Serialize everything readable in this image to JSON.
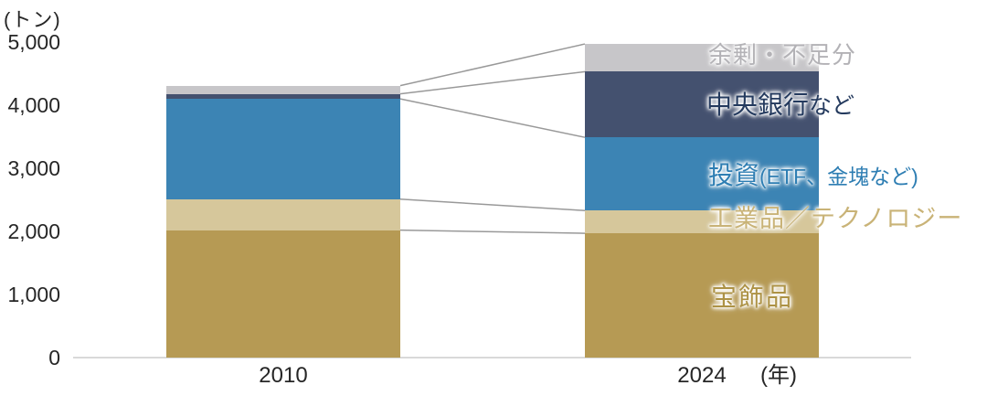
{
  "chart_data": {
    "type": "stacked-bar",
    "title": "",
    "y_unit_label": "(トン)",
    "x_unit_label": "(年)",
    "categories": [
      "2010",
      "2024"
    ],
    "series": [
      {
        "name": "宝飾品",
        "color": "#B69A54",
        "values": [
          2020,
          1970
        ]
      },
      {
        "name": "工業品／テクノロジー",
        "color": "#D6C79B",
        "values": [
          490,
          360
        ]
      },
      {
        "name": "投資(ETF、金塊など)",
        "color": "#3C84B4",
        "values": [
          1590,
          1160
        ]
      },
      {
        "name": "中央銀行など",
        "color": "#44516F",
        "values": [
          80,
          1040
        ]
      },
      {
        "name": "余剰・不足分",
        "color": "#C7C6C9",
        "values": [
          130,
          440
        ]
      }
    ],
    "totals": [
      4310,
      4970
    ],
    "ylim": [
      0,
      5000
    ],
    "y_ticks": [
      {
        "value": 0,
        "label": "0"
      },
      {
        "value": 1000,
        "label": "1,000"
      },
      {
        "value": 2000,
        "label": "2,000"
      },
      {
        "value": 3000,
        "label": "3,000"
      },
      {
        "value": 4000,
        "label": "4,000"
      },
      {
        "value": 5000,
        "label": "5,000"
      }
    ],
    "grid": false,
    "legend_position": "right-side-annotations"
  },
  "axis": {
    "y_unit": "(トン)",
    "x_unit": "(年)",
    "x_labels": {
      "left": "2010",
      "right": "2024"
    }
  },
  "annotations": {
    "surplus": "余剰・不足分",
    "central_bank_main": "中央銀行",
    "central_bank_sub": "など",
    "investment_main": "投資",
    "investment_sub": "(ETF、金塊など)",
    "industry": "工業品／テクノロジー",
    "jewelry": "宝飾品"
  }
}
